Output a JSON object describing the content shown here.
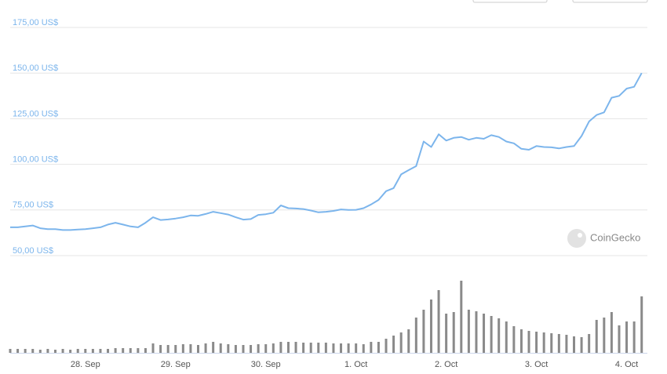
{
  "chart_data": {
    "type": "line",
    "categories": [
      null,
      null,
      null,
      null,
      null,
      null,
      null,
      null,
      null,
      null,
      "28. Sep",
      null,
      null,
      null,
      null,
      null,
      null,
      null,
      null,
      null,
      null,
      null,
      "29. Sep",
      null,
      null,
      null,
      null,
      null,
      null,
      null,
      null,
      null,
      null,
      null,
      "30. Sep",
      null,
      null,
      null,
      null,
      null,
      null,
      null,
      null,
      null,
      null,
      null,
      "1. Oct",
      null,
      null,
      null,
      null,
      null,
      null,
      null,
      null,
      null,
      null,
      null,
      "2. Oct",
      null,
      null,
      null,
      null,
      null,
      null,
      null,
      null,
      null,
      null,
      null,
      "3. Oct",
      null,
      null,
      null,
      null,
      null,
      null,
      null,
      null,
      null,
      null,
      null,
      "4. Oct",
      null,
      null
    ],
    "series": [
      {
        "color": "#7cb5ec",
        "values": [
          65.5,
          65.5,
          66,
          66.5,
          65,
          64.5,
          64.5,
          64,
          64,
          64.3,
          64.5,
          65,
          65.5,
          67,
          68,
          67,
          66,
          65.5,
          68,
          71,
          69.5,
          69.8,
          70.3,
          71,
          72,
          71.8,
          72.8,
          74,
          73.3,
          72.5,
          71,
          69.7,
          70,
          72.3,
          72.7,
          73.5,
          77.5,
          76,
          75.8,
          75.5,
          74.7,
          73.7,
          74,
          74.5,
          75.3,
          75,
          75.1,
          76,
          78,
          80.5,
          85.3,
          87,
          94.5,
          96.8,
          99,
          112.5,
          109.5,
          116.5,
          113,
          114.5,
          115,
          113.5,
          114.5,
          114,
          116,
          115,
          112.5,
          111.5,
          108.5,
          108,
          110,
          109.5,
          109.3,
          108.7,
          109.5,
          110,
          115.5,
          123.5,
          127,
          128.5,
          136.5,
          137.5,
          141.5,
          142.5,
          150
        ]
      },
      {
        "type": "bar",
        "axis": "y2",
        "color": "#8a8a8a",
        "values": [
          5,
          5,
          5,
          5,
          4,
          5,
          4,
          5,
          4,
          5,
          5,
          5,
          5,
          5,
          6,
          6,
          6,
          6,
          6,
          12,
          10,
          10,
          10,
          11,
          11,
          10,
          12,
          14,
          12,
          11,
          10,
          10,
          10,
          11,
          11,
          12,
          14,
          14,
          14,
          13,
          13,
          13,
          13,
          12,
          12,
          12,
          12,
          11,
          14,
          14,
          18,
          22,
          26,
          30,
          45,
          55,
          68,
          80,
          50,
          52,
          92,
          55,
          53,
          50,
          47,
          44,
          40,
          34,
          30,
          28,
          27,
          26,
          25,
          24,
          23,
          21,
          20,
          24,
          42,
          45,
          52,
          35,
          40,
          40,
          72
        ]
      }
    ],
    "ylim": [
      50,
      175
    ],
    "yticks": [
      {
        "value": 50,
        "label": "50,00 US$"
      },
      {
        "value": 75,
        "label": "75,00 US$"
      },
      {
        "value": 100,
        "label": "100,00 US$"
      },
      {
        "value": 125,
        "label": "125,00 US$"
      },
      {
        "value": 150,
        "label": "150,00 US$"
      },
      {
        "value": 175,
        "label": "175,00 US$"
      }
    ],
    "y2lim": [
      0,
      100
    ],
    "grid": true,
    "watermark": "CoinGecko"
  }
}
